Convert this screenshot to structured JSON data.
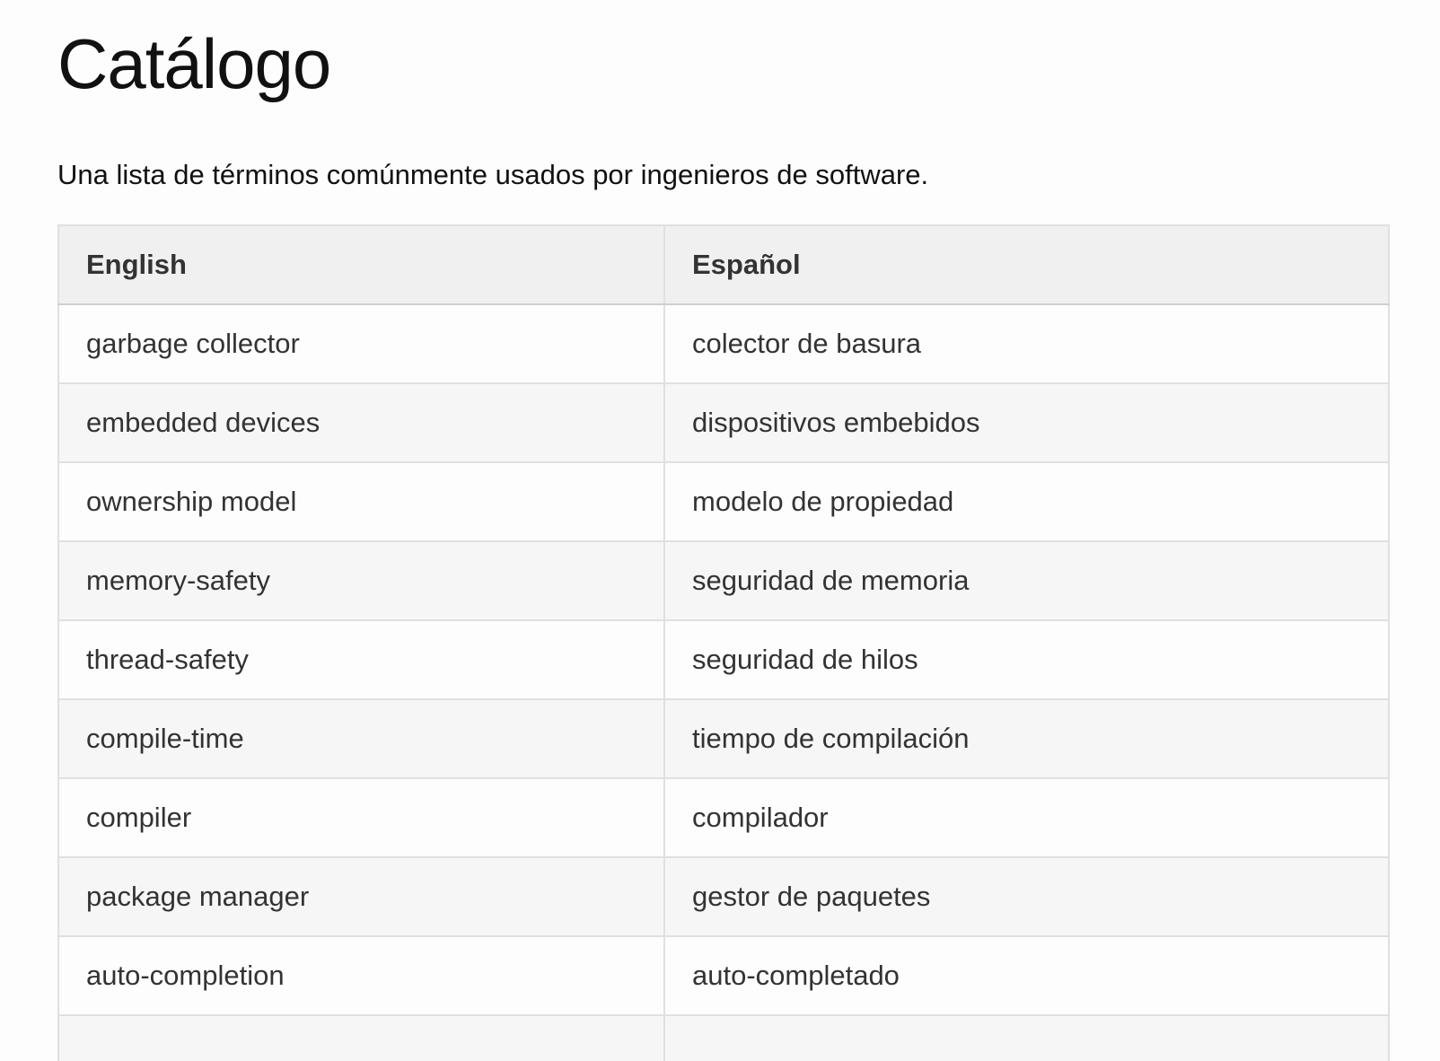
{
  "page": {
    "title": "Catálogo",
    "description": "Una lista de términos comúnmente usados por ingenieros de software."
  },
  "table": {
    "headers": [
      "English",
      "Español"
    ],
    "rows": [
      [
        "garbage collector",
        "colector de basura"
      ],
      [
        "embedded devices",
        "dispositivos embebidos"
      ],
      [
        "ownership model",
        "modelo de propiedad"
      ],
      [
        "memory-safety",
        "seguridad de memoria"
      ],
      [
        "thread-safety",
        "seguridad de hilos"
      ],
      [
        "compile-time",
        "tiempo de compilación"
      ],
      [
        "compiler",
        "compilador"
      ],
      [
        "package manager",
        "gestor de paquetes"
      ],
      [
        "auto-completion",
        "auto-completado"
      ],
      [
        "",
        ""
      ]
    ]
  }
}
